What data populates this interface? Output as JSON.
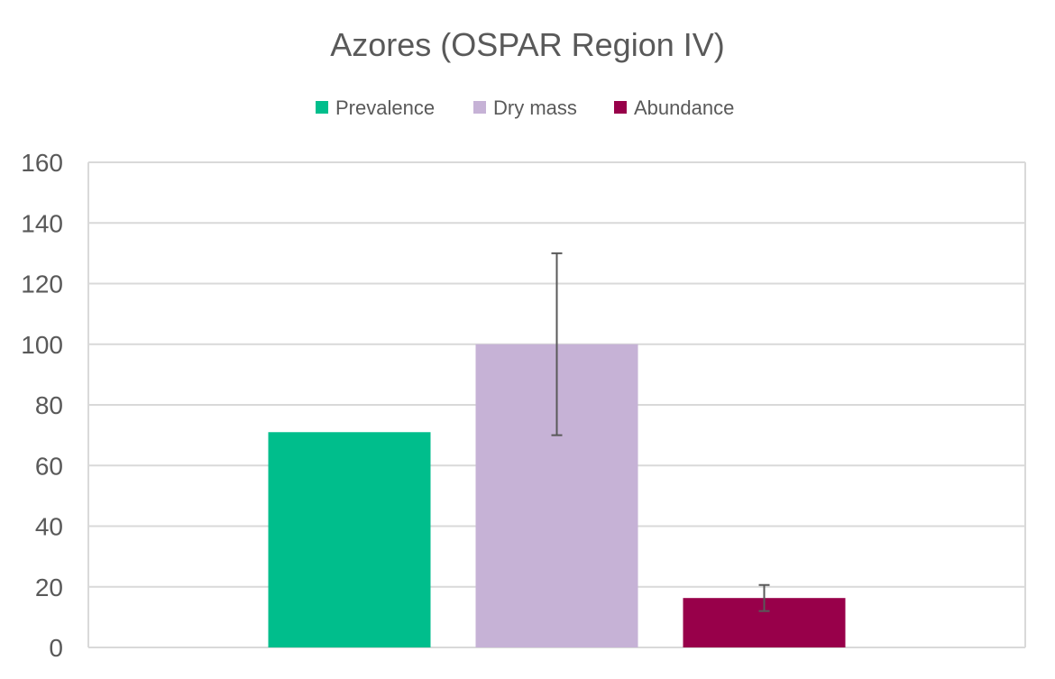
{
  "chart_data": {
    "type": "bar",
    "title": "Azores (OSPAR Region IV)",
    "xlabel": "",
    "ylabel": "",
    "ylim": [
      0,
      160
    ],
    "yticks": [
      "0",
      "20",
      "40",
      "60",
      "80",
      "100",
      "120",
      "140",
      "160"
    ],
    "grid": true,
    "legend_position": "top",
    "categories": [
      ""
    ],
    "series": [
      {
        "name": "Prevalence",
        "values": [
          71
        ],
        "error": null,
        "color": "#00BE8C"
      },
      {
        "name": "Dry mass",
        "values": [
          100
        ],
        "error": [
          30
        ],
        "color": "#C6B2D6"
      },
      {
        "name": "Abundance",
        "values": [
          16.3
        ],
        "error": [
          4.3
        ],
        "color": "#98004A"
      }
    ]
  }
}
